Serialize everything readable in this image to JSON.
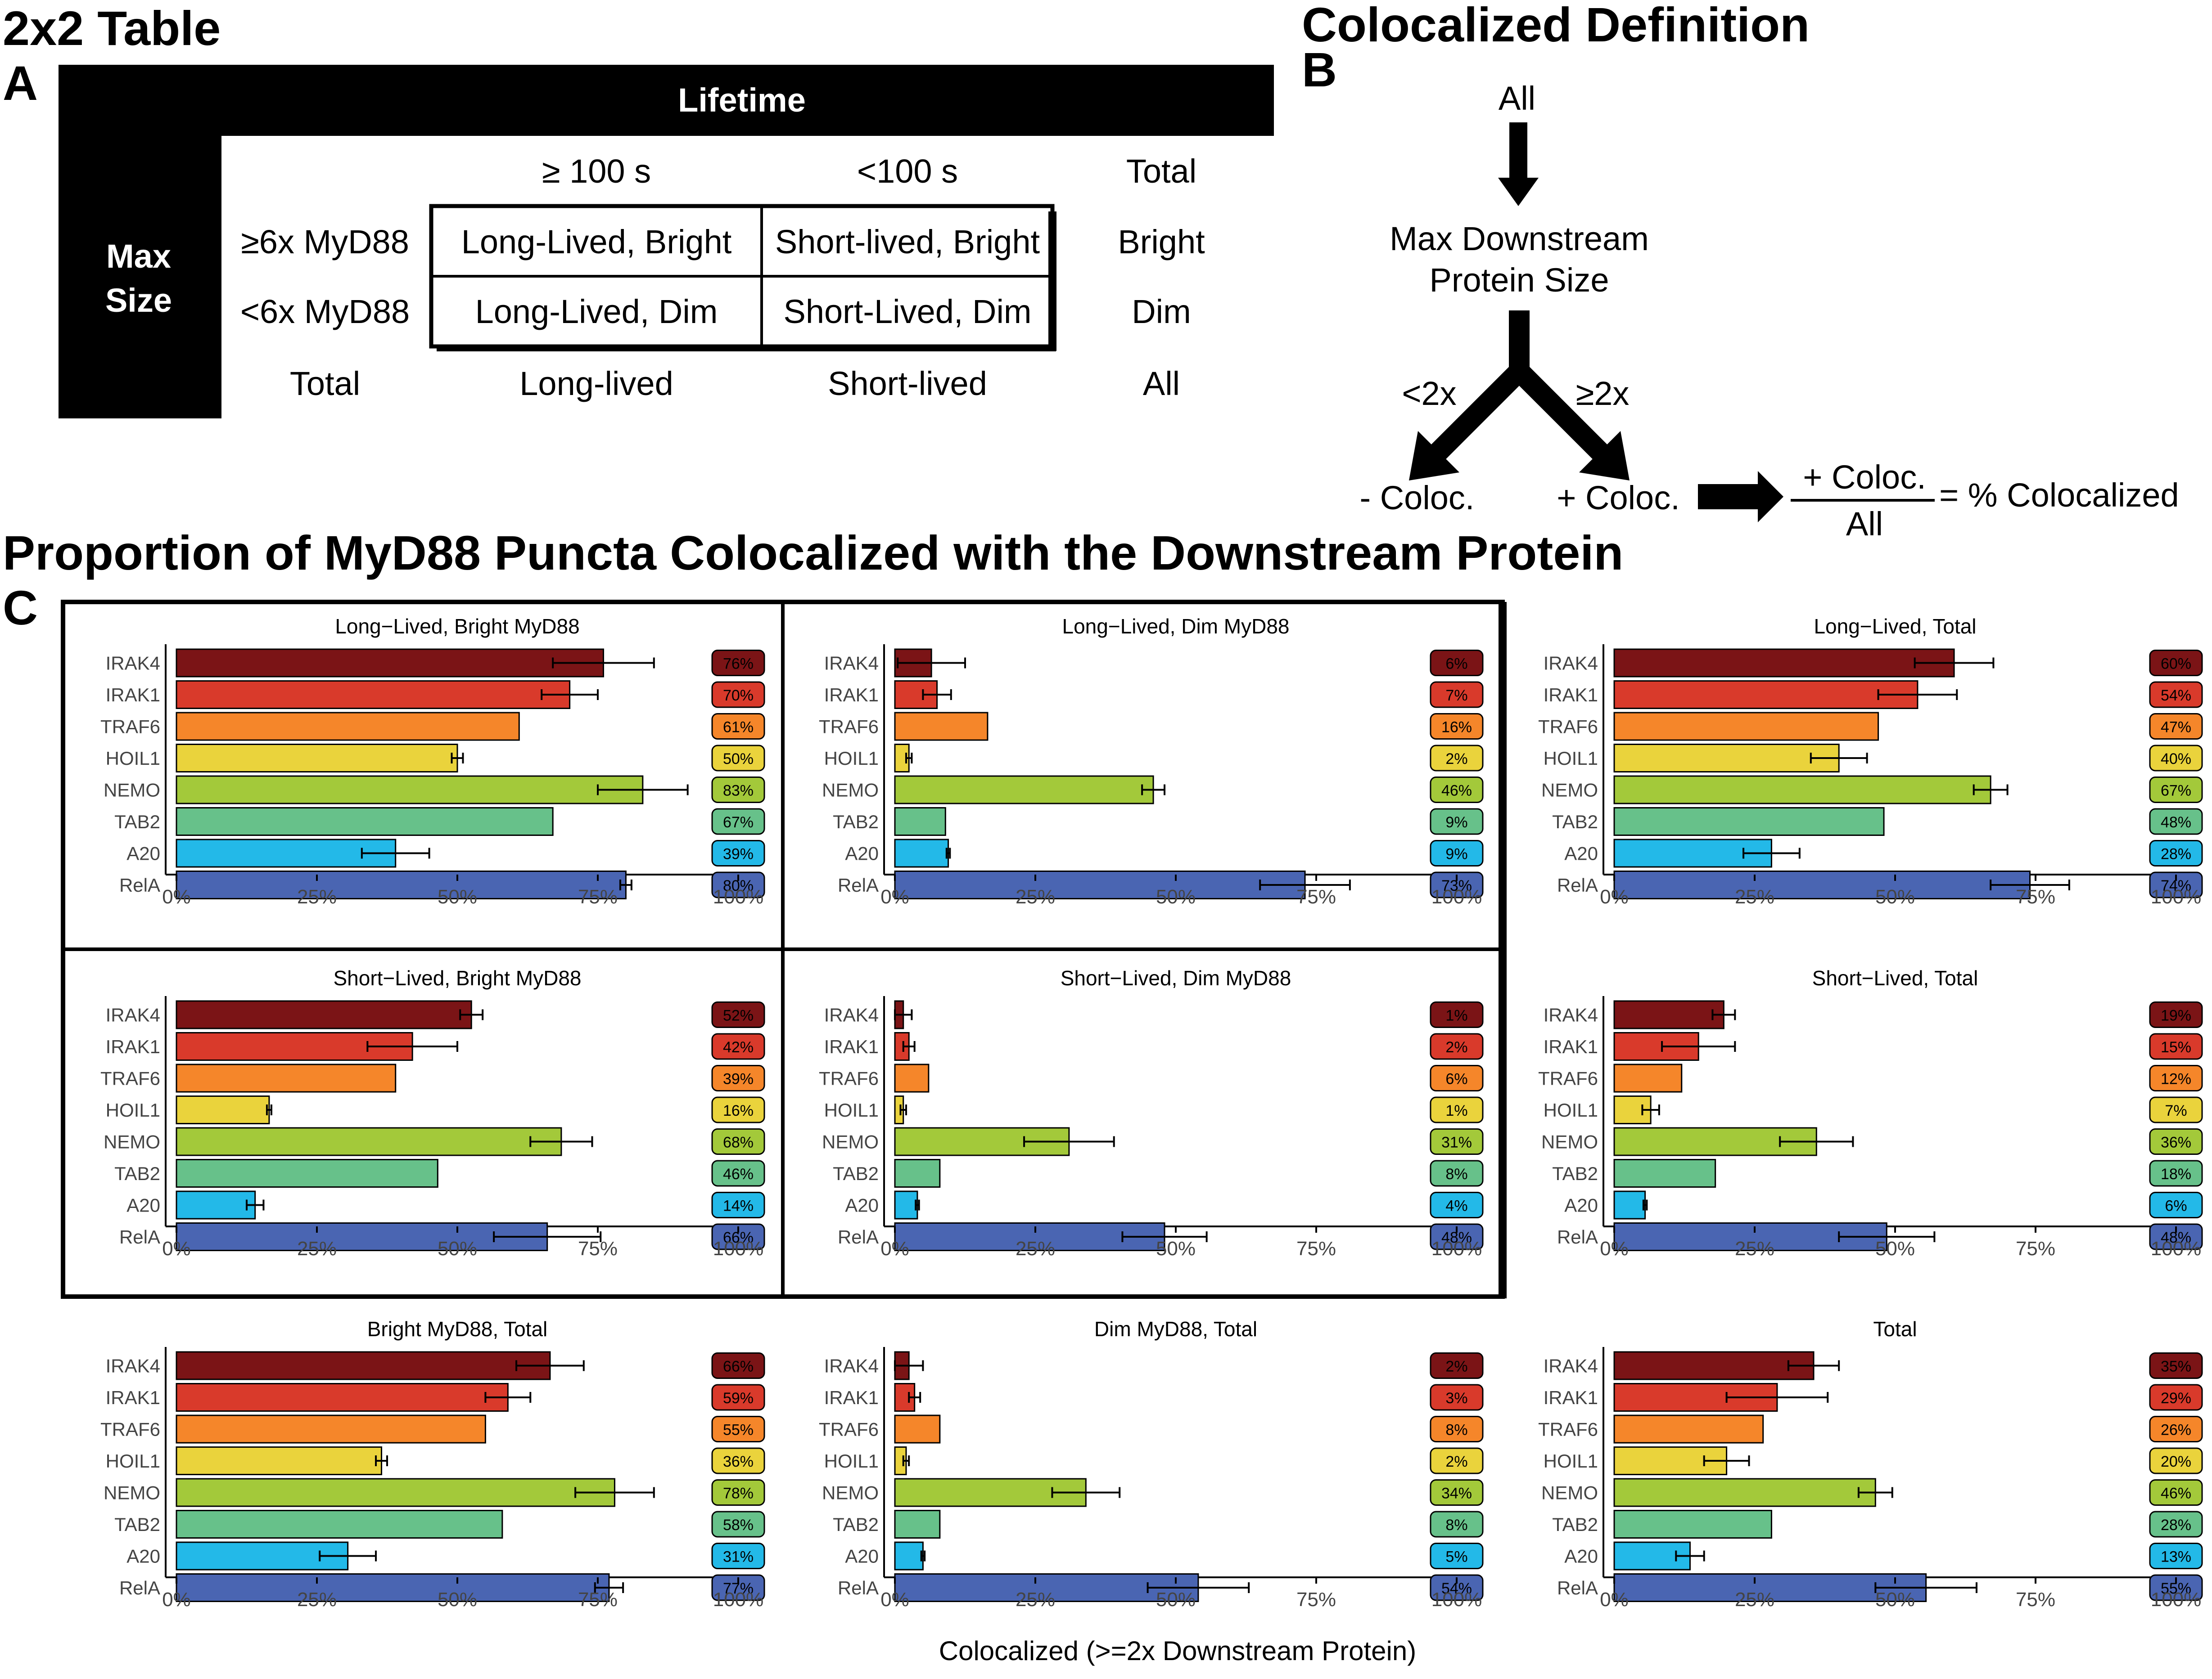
{
  "section_a": {
    "heading": "2x2 Table",
    "letter": "A",
    "top_label": "Lifetime",
    "side_label_line1": "Max",
    "side_label_line2": "Size",
    "col_headers": [
      "≥ 100 s",
      "<100 s",
      "Total"
    ],
    "row_headers": [
      "≥6x MyD88",
      "<6x MyD88",
      "Total"
    ],
    "cells": [
      [
        "Long-Lived, Bright",
        "Short-lived, Bright",
        "Bright"
      ],
      [
        "Long-Lived, Dim",
        "Short-Lived, Dim",
        "Dim"
      ],
      [
        "Long-lived",
        "Short-lived",
        "All"
      ]
    ]
  },
  "section_b": {
    "heading": "Colocalized Definition",
    "letter": "B",
    "top": "All",
    "middle_line1": "Max Downstream",
    "middle_line2": "Protein Size",
    "left_branch": "<2x",
    "right_branch": "≥2x",
    "left_result": "- Coloc.",
    "right_result": "+ Coloc.",
    "numerator": "+ Coloc.",
    "denominator": "All",
    "result": "= % Colocalized"
  },
  "section_c": {
    "heading": "Proportion of MyD88 Puncta Colocalized with the Downstream Protein",
    "letter": "C",
    "x_axis_label": "Colocalized (>=2x Downstream Protein)"
  },
  "colors": {
    "IRAK4": "#7b1416",
    "IRAK1": "#d93a2b",
    "TRAF6": "#f5862a",
    "HOIL1": "#ead33c",
    "NEMO": "#a3c93a",
    "TAB2": "#67c18a",
    "A20": "#23b9e8",
    "RelA": "#4a65b2"
  },
  "chart_data": [
    {
      "type": "bar",
      "title": "Long−Lived, Bright MyD88",
      "categories": [
        "IRAK4",
        "IRAK1",
        "TRAF6",
        "HOIL1",
        "NEMO",
        "TAB2",
        "A20",
        "RelA"
      ],
      "values": [
        76,
        70,
        61,
        50,
        83,
        67,
        39,
        80
      ],
      "errors": [
        9,
        5,
        0,
        1,
        8,
        0,
        6,
        1
      ],
      "labels": [
        "76%",
        "70%",
        "61%",
        "50%",
        "83%",
        "67%",
        "39%",
        "80%"
      ],
      "xlim": [
        0,
        100
      ],
      "xticks": [
        "0%",
        "25%",
        "50%",
        "75%",
        "100%"
      ]
    },
    {
      "type": "bar",
      "title": "Long−Lived, Dim MyD88",
      "categories": [
        "IRAK4",
        "IRAK1",
        "TRAF6",
        "HOIL1",
        "NEMO",
        "TAB2",
        "A20",
        "RelA"
      ],
      "values": [
        6.5,
        7.5,
        16.5,
        2.5,
        46,
        9,
        9.5,
        73
      ],
      "errors": [
        6,
        2.5,
        0,
        0.5,
        2,
        0,
        0.3,
        8
      ],
      "labels": [
        "6%",
        "7%",
        "16%",
        "2%",
        "46%",
        "9%",
        "9%",
        "73%"
      ],
      "xlim": [
        0,
        100
      ],
      "xticks": [
        "0%",
        "25%",
        "50%",
        "75%",
        "100%"
      ]
    },
    {
      "type": "bar",
      "title": "Long−Lived, Total",
      "categories": [
        "IRAK4",
        "IRAK1",
        "TRAF6",
        "HOIL1",
        "NEMO",
        "TAB2",
        "A20",
        "RelA"
      ],
      "values": [
        60.5,
        54,
        47,
        40,
        67,
        48,
        28,
        74
      ],
      "errors": [
        7,
        7,
        0,
        5,
        3,
        0,
        5,
        7
      ],
      "labels": [
        "60%",
        "54%",
        "47%",
        "40%",
        "67%",
        "48%",
        "28%",
        "74%"
      ],
      "xlim": [
        0,
        100
      ],
      "xticks": [
        "0%",
        "25%",
        "50%",
        "75%",
        "100%"
      ]
    },
    {
      "type": "bar",
      "title": "Short−Lived, Bright MyD88",
      "categories": [
        "IRAK4",
        "IRAK1",
        "TRAF6",
        "HOIL1",
        "NEMO",
        "TAB2",
        "A20",
        "RelA"
      ],
      "values": [
        52.5,
        42,
        39,
        16.5,
        68.5,
        46.5,
        14,
        66
      ],
      "errors": [
        2,
        8,
        0,
        0.4,
        5.5,
        0,
        1.5,
        9.5
      ],
      "labels": [
        "52%",
        "42%",
        "39%",
        "16%",
        "68%",
        "46%",
        "14%",
        "66%"
      ],
      "xlim": [
        0,
        100
      ],
      "xticks": [
        "0%",
        "25%",
        "50%",
        "75%",
        "100%"
      ]
    },
    {
      "type": "bar",
      "title": "Short−Lived, Dim MyD88",
      "categories": [
        "IRAK4",
        "IRAK1",
        "TRAF6",
        "HOIL1",
        "NEMO",
        "TAB2",
        "A20",
        "RelA"
      ],
      "values": [
        1.5,
        2.5,
        6,
        1.5,
        31,
        8,
        4,
        48
      ],
      "errors": [
        1.5,
        1,
        0,
        0.5,
        8,
        0,
        0.3,
        7.5
      ],
      "labels": [
        "1%",
        "2%",
        "6%",
        "1%",
        "31%",
        "8%",
        "4%",
        "48%"
      ],
      "xlim": [
        0,
        100
      ],
      "xticks": [
        "0%",
        "25%",
        "50%",
        "75%",
        "100%"
      ]
    },
    {
      "type": "bar",
      "title": "Short−Lived, Total",
      "categories": [
        "IRAK4",
        "IRAK1",
        "TRAF6",
        "HOIL1",
        "NEMO",
        "TAB2",
        "A20",
        "RelA"
      ],
      "values": [
        19.5,
        15,
        12,
        6.5,
        36,
        18,
        5.5,
        48.5
      ],
      "errors": [
        2,
        6.5,
        0,
        1.5,
        6.5,
        0,
        0.3,
        8.5
      ],
      "labels": [
        "19%",
        "15%",
        "12%",
        "7%",
        "36%",
        "18%",
        "6%",
        "48%"
      ],
      "xlim": [
        0,
        100
      ],
      "xticks": [
        "0%",
        "25%",
        "50%",
        "75%",
        "100%"
      ]
    },
    {
      "type": "bar",
      "title": "Bright MyD88, Total",
      "categories": [
        "IRAK4",
        "IRAK1",
        "TRAF6",
        "HOIL1",
        "NEMO",
        "TAB2",
        "A20",
        "RelA"
      ],
      "values": [
        66.5,
        59,
        55,
        36.5,
        78,
        58,
        30.5,
        77
      ],
      "errors": [
        6,
        4,
        0,
        1,
        7,
        0,
        5,
        2.5
      ],
      "labels": [
        "66%",
        "59%",
        "55%",
        "36%",
        "78%",
        "58%",
        "31%",
        "77%"
      ],
      "xlim": [
        0,
        100
      ],
      "xticks": [
        "0%",
        "25%",
        "50%",
        "75%",
        "100%"
      ]
    },
    {
      "type": "bar",
      "title": "Dim MyD88, Total",
      "categories": [
        "IRAK4",
        "IRAK1",
        "TRAF6",
        "HOIL1",
        "NEMO",
        "TAB2",
        "A20",
        "RelA"
      ],
      "values": [
        2.5,
        3.5,
        8,
        2,
        34,
        8,
        5,
        54
      ],
      "errors": [
        2.5,
        1,
        0,
        0.5,
        6,
        0,
        0.3,
        9
      ],
      "labels": [
        "2%",
        "3%",
        "8%",
        "2%",
        "34%",
        "8%",
        "5%",
        "54%"
      ],
      "xlim": [
        0,
        100
      ],
      "xticks": [
        "0%",
        "25%",
        "50%",
        "75%",
        "100%"
      ]
    },
    {
      "type": "bar",
      "title": "Total",
      "categories": [
        "IRAK4",
        "IRAK1",
        "TRAF6",
        "HOIL1",
        "NEMO",
        "TAB2",
        "A20",
        "RelA"
      ],
      "values": [
        35.5,
        29,
        26.5,
        20,
        46.5,
        28,
        13.5,
        55.5
      ],
      "errors": [
        4.5,
        9,
        0,
        4,
        3,
        0,
        2.5,
        9
      ],
      "labels": [
        "35%",
        "29%",
        "26%",
        "20%",
        "46%",
        "28%",
        "13%",
        "55%"
      ],
      "xlim": [
        0,
        100
      ],
      "xticks": [
        "0%",
        "25%",
        "50%",
        "75%",
        "100%"
      ]
    }
  ]
}
